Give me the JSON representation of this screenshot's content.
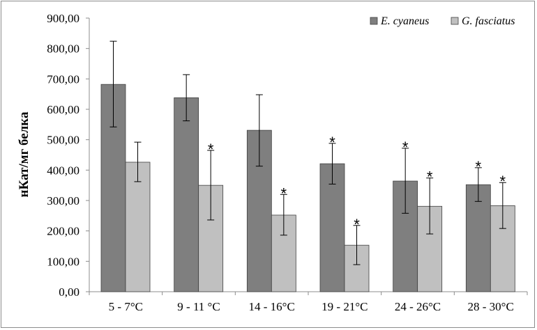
{
  "chart_data": {
    "type": "bar",
    "title": "",
    "xlabel": "",
    "ylabel": "нКат/мг белка",
    "ylim": [
      0,
      900
    ],
    "ytick_step": 100,
    "ytick_labels": [
      "0,00",
      "100,00",
      "200,00",
      "300,00",
      "400,00",
      "500,00",
      "600,00",
      "700,00",
      "800,00",
      "900,00"
    ],
    "categories": [
      "5 - 7°C",
      "9 - 11 °C",
      "14 - 16°C",
      "19 - 21°C",
      "24 - 26°C",
      "28 - 30°C"
    ],
    "series": [
      {
        "name": "E. cyaneus",
        "color": "#7f7f7f",
        "values": [
          682,
          638,
          531,
          421,
          364,
          352
        ],
        "error_low": [
          542,
          562,
          413,
          354,
          258,
          297
        ],
        "error_high": [
          824,
          714,
          648,
          488,
          472,
          408
        ],
        "significant": [
          false,
          false,
          false,
          true,
          true,
          true
        ]
      },
      {
        "name": "G. fasciatus",
        "color": "#c0c0c0",
        "values": [
          426,
          350,
          252,
          153,
          281,
          283
        ],
        "error_low": [
          362,
          236,
          186,
          89,
          190,
          208
        ],
        "error_high": [
          492,
          465,
          320,
          218,
          374,
          359
        ],
        "significant": [
          false,
          true,
          true,
          true,
          true,
          true
        ]
      }
    ],
    "significance_marker": "*",
    "legend_position": "top-right",
    "grid": false
  }
}
